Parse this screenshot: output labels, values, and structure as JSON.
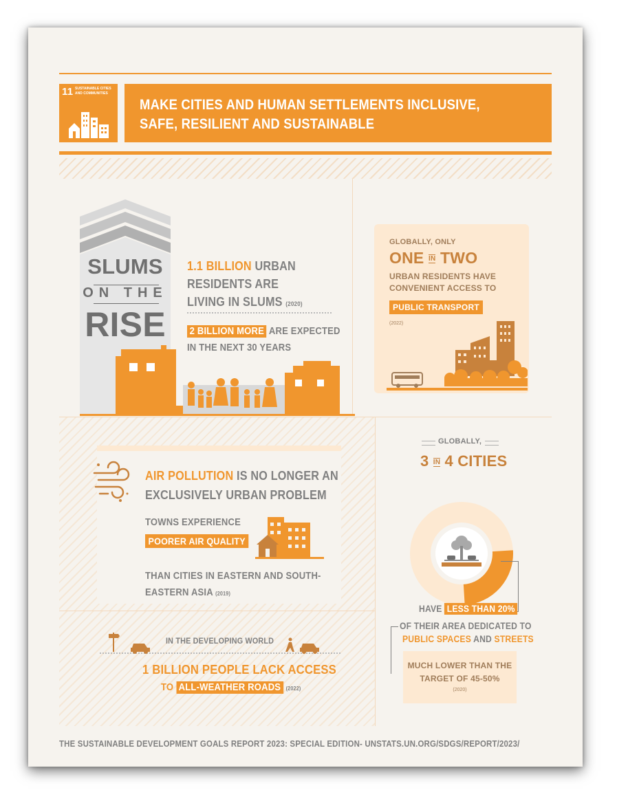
{
  "header": {
    "goal_number": "11",
    "goal_name": "SUSTAINABLE CITIES AND COMMUNITIES",
    "title_line1": "MAKE CITIES AND HUMAN SETTLEMENTS INCLUSIVE,",
    "title_line2": "SAFE, RESILIENT AND SUSTAINABLE"
  },
  "slums": {
    "word1": "SLUMS",
    "word2": "ON THE",
    "word3": "RISE",
    "stat_highlight": "1.1 BILLION",
    "stat_line1_rest": "URBAN",
    "stat_line2": "RESIDENTS ARE",
    "stat_line3": "LIVING IN SLUMS",
    "stat_year": "(2020)",
    "more_highlight": "2 BILLION MORE",
    "more_rest": "ARE EXPECTED",
    "more_line2": "IN THE NEXT 30 YEARS"
  },
  "transport": {
    "line1": "GLOBALLY, ONLY",
    "big_one": "ONE",
    "big_in": "IN",
    "big_two": "TWO",
    "line3": "URBAN RESIDENTS HAVE",
    "line4": "CONVENIENT ACCESS TO",
    "highlight": "PUBLIC TRANSPORT",
    "year": "(2022)"
  },
  "air": {
    "highlight": "AIR POLLUTION",
    "rest1": "IS NO LONGER AN",
    "line2": "EXCLUSIVELY URBAN PROBLEM",
    "towns": "TOWNS EXPERIENCE",
    "poorer": "POORER AIR QUALITY",
    "than1": "THAN CITIES IN EASTERN AND SOUTH-",
    "than2": "EASTERN ASIA",
    "year": "(2019)"
  },
  "cities": {
    "globally": "GLOBALLY,",
    "big3": "3",
    "big_in": "IN",
    "big4": "4 CITIES",
    "have": "HAVE",
    "less": "LESS THAN 20%",
    "area": "OF THEIR AREA DEDICATED TO",
    "public": "PUBLIC SPACES",
    "and": "AND",
    "streets": "STREETS",
    "much1": "MUCH LOWER THAN THE",
    "much2": "TARGET OF 45-50%",
    "year": "(2020)",
    "donut_share": 0.75
  },
  "roads": {
    "developing": "IN THE DEVELOPING WORLD",
    "line1": "1 BILLION PEOPLE LACK ACCESS",
    "to": "TO",
    "highlight": "ALL-WEATHER ROADS",
    "year": "(2022)"
  },
  "footer": {
    "source": "THE SUSTAINABLE DEVELOPMENT GOALS REPORT 2023: SPECIAL EDITION- UNSTATS.UN.ORG/SDGS/REPORT/2023/"
  },
  "colors": {
    "orange": "#f0962e",
    "brown": "#c8823c",
    "light_orange": "#fde9d2",
    "gray": "#808080",
    "background": "#f6f3ee"
  }
}
